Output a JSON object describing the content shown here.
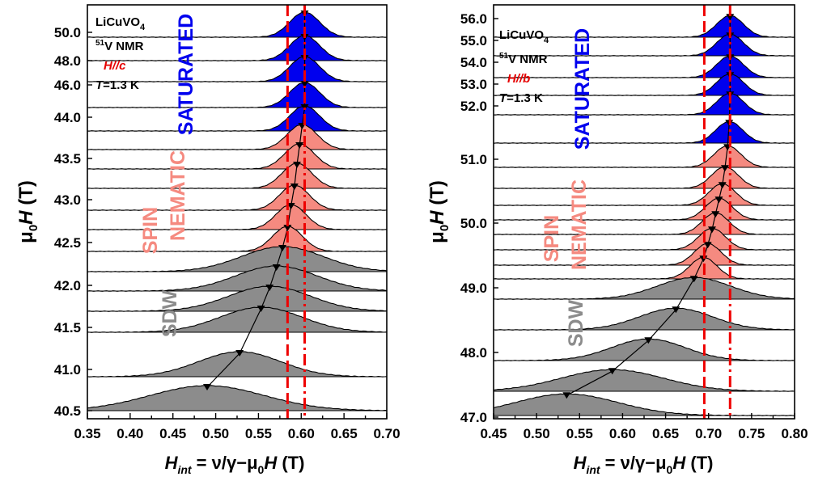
{
  "chart_data": [
    {
      "type": "area",
      "panel": "left",
      "info_lines": [
        "LiCuVO",
        "4",
        "51",
        "V NMR",
        "H//c",
        "T",
        "=1.3 K"
      ],
      "xlabel_parts": [
        "H",
        "int",
        " = ν/γ−μ",
        "0",
        "H",
        " (T)"
      ],
      "ylabel_parts": [
        "μ",
        "0",
        "H",
        " (T)"
      ],
      "xlim": [
        0.35,
        0.7
      ],
      "xticks": [
        "0.35",
        "0.40",
        "0.45",
        "0.50",
        "0.55",
        "0.60",
        "0.65",
        "0.70"
      ],
      "ytick_labels": [
        "50.0",
        "48.0",
        "46.0",
        "44.0",
        "43.5",
        "43.0",
        "42.5",
        "42.0",
        "41.5",
        "41.0",
        "40.5"
      ],
      "phases": [
        {
          "label": "SATURATED",
          "color": "#0000ee"
        },
        {
          "label": "NEMATIC",
          "color": "#f58a80"
        },
        {
          "label": "SPIN",
          "color": "#f58a80"
        },
        {
          "label": "SDW",
          "color": "#8c8c8c"
        }
      ],
      "reference_lines_x": [
        0.584,
        0.604
      ],
      "spectra": [
        {
          "field": 40.5,
          "peak_x": 0.49,
          "phase": "SDW"
        },
        {
          "field": 41.0,
          "peak_x": 0.528,
          "phase": "SDW"
        },
        {
          "field": 41.5,
          "peak_x": 0.553,
          "phase": "SDW"
        },
        {
          "field": 41.75,
          "peak_x": 0.563,
          "phase": "SDW"
        },
        {
          "field": 42.0,
          "peak_x": 0.571,
          "phase": "SDW"
        },
        {
          "field": 42.25,
          "peak_x": 0.578,
          "phase": "SDW"
        },
        {
          "field": 42.5,
          "peak_x": 0.584,
          "phase": "SPIN NEMATIC"
        },
        {
          "field": 42.75,
          "peak_x": 0.588,
          "phase": "SPIN NEMATIC"
        },
        {
          "field": 43.0,
          "peak_x": 0.592,
          "phase": "SPIN NEMATIC"
        },
        {
          "field": 43.25,
          "peak_x": 0.595,
          "phase": "SPIN NEMATIC"
        },
        {
          "field": 43.5,
          "peak_x": 0.598,
          "phase": "SPIN NEMATIC"
        },
        {
          "field": 43.75,
          "peak_x": 0.601,
          "phase": "SPIN NEMATIC"
        },
        {
          "field": 44.0,
          "peak_x": 0.604,
          "phase": "SATURATED"
        },
        {
          "field": 46.0,
          "peak_x": 0.604,
          "phase": "SATURATED"
        },
        {
          "field": 47.0,
          "peak_x": 0.604,
          "phase": "SATURATED"
        },
        {
          "field": 48.0,
          "peak_x": 0.604,
          "phase": "SATURATED"
        },
        {
          "field": 50.0,
          "peak_x": 0.604,
          "phase": "SATURATED"
        }
      ]
    },
    {
      "type": "area",
      "panel": "right",
      "info_lines": [
        "LiCuVO",
        "4",
        "51",
        "V NMR",
        "H//b",
        "T",
        "=1.3 K"
      ],
      "xlabel_parts": [
        "H",
        "int",
        " = ν/γ−μ",
        "0",
        "H",
        " (T)"
      ],
      "ylabel_parts": [
        "μ",
        "0",
        "H",
        " (T)"
      ],
      "xlim": [
        0.45,
        0.8
      ],
      "xticks": [
        "0.45",
        "0.50",
        "0.55",
        "0.60",
        "0.65",
        "0.70",
        "0.75",
        "0.80"
      ],
      "ytick_labels": [
        "56.0",
        "55.0",
        "54.0",
        "53.0",
        "52.0",
        "51.0",
        "50.0",
        "49.0",
        "48.0",
        "47.0"
      ],
      "phases": [
        {
          "label": "SATURATED",
          "color": "#0000ee"
        },
        {
          "label": "NEMATIC",
          "color": "#f58a80"
        },
        {
          "label": "SPIN",
          "color": "#f58a80"
        },
        {
          "label": "SDW",
          "color": "#8c8c8c"
        }
      ],
      "reference_lines_x": [
        0.695,
        0.725
      ],
      "spectra": [
        {
          "field": 47.0,
          "peak_x": 0.535,
          "phase": "SDW"
        },
        {
          "field": 47.5,
          "peak_x": 0.588,
          "phase": "SDW"
        },
        {
          "field": 48.0,
          "peak_x": 0.63,
          "phase": "SDW"
        },
        {
          "field": 48.5,
          "peak_x": 0.662,
          "phase": "SDW"
        },
        {
          "field": 49.0,
          "peak_x": 0.683,
          "phase": "SDW"
        },
        {
          "field": 49.25,
          "peak_x": 0.694,
          "phase": "SPIN NEMATIC"
        },
        {
          "field": 49.5,
          "peak_x": 0.699,
          "phase": "SPIN NEMATIC"
        },
        {
          "field": 49.75,
          "peak_x": 0.704,
          "phase": "SPIN NEMATIC"
        },
        {
          "field": 50.0,
          "peak_x": 0.708,
          "phase": "SPIN NEMATIC"
        },
        {
          "field": 50.25,
          "peak_x": 0.712,
          "phase": "SPIN NEMATIC"
        },
        {
          "field": 50.5,
          "peak_x": 0.716,
          "phase": "SPIN NEMATIC"
        },
        {
          "field": 50.75,
          "peak_x": 0.719,
          "phase": "SPIN NEMATIC"
        },
        {
          "field": 51.0,
          "peak_x": 0.722,
          "phase": "SPIN NEMATIC"
        },
        {
          "field": 51.5,
          "peak_x": 0.724,
          "phase": "SATURATED"
        },
        {
          "field": 52.0,
          "peak_x": 0.725,
          "phase": "SATURATED"
        },
        {
          "field": 53.0,
          "peak_x": 0.725,
          "phase": "SATURATED"
        },
        {
          "field": 54.0,
          "peak_x": 0.725,
          "phase": "SATURATED"
        },
        {
          "field": 55.0,
          "peak_x": 0.725,
          "phase": "SATURATED"
        },
        {
          "field": 56.0,
          "peak_x": 0.725,
          "phase": "SATURATED"
        }
      ]
    }
  ]
}
